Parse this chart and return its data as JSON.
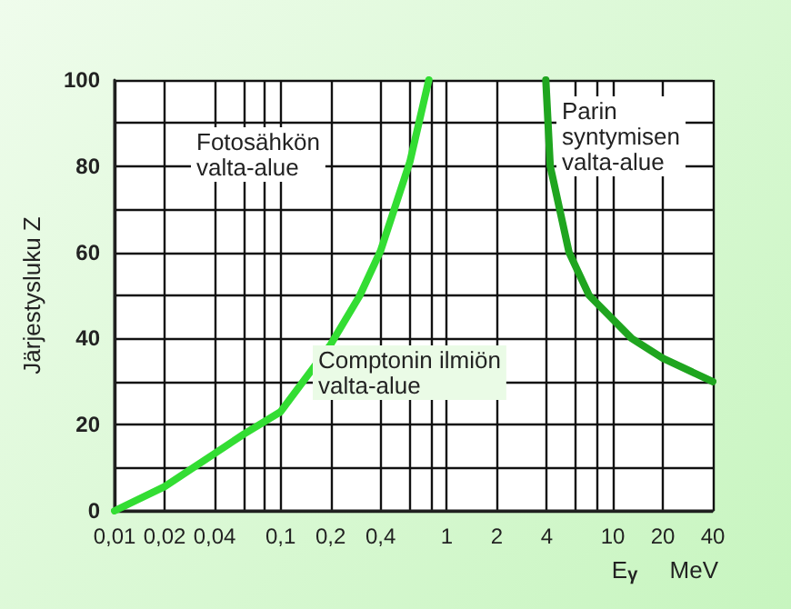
{
  "chart_data": {
    "type": "line",
    "ylabel": "Järjestysluku Z",
    "xlabel": "E$_{γ}$ MeV",
    "annotations": [
      "Fotosähkön\nvalta-alue",
      "Comptonin ilmiön\nvalta-alue",
      "Parin\nsyntymisen\nvalta-alue"
    ],
    "log": "x",
    "series": [
      {
        "color": "#33dd33",
        "x": [
          0.01,
          0.02,
          0.04,
          0.06,
          0.1,
          0.2,
          0.3,
          0.4,
          0.6,
          0.78
        ],
        "values": [
          0,
          5.6,
          13.3,
          17.8,
          23,
          38.6,
          50,
          60.4,
          81,
          100
        ]
      },
      {
        "color": "#1fa51f",
        "x": [
          3.95,
          4.2,
          5.45,
          7.2,
          13,
          20,
          40
        ],
        "values": [
          100,
          80,
          60,
          50,
          40,
          35.4,
          30
        ]
      }
    ],
    "xlim": [
      0.01,
      40
    ],
    "ylim": [
      0,
      100
    ],
    "xticks": [
      {
        "value": 0.01,
        "label": "0,01"
      },
      {
        "value": 0.02,
        "label": "0,02"
      },
      {
        "value": 0.04,
        "label": "0,04"
      },
      {
        "value": 0.06,
        "label": null
      },
      {
        "value": 0.08,
        "label": null
      },
      {
        "value": 0.1,
        "label": "0,1"
      },
      {
        "value": 0.2,
        "label": "0,2"
      },
      {
        "value": 0.4,
        "label": "0,4"
      },
      {
        "value": 0.6,
        "label": null
      },
      {
        "value": 0.8,
        "label": null
      },
      1,
      2,
      4,
      {
        "value": 6,
        "label": null
      },
      {
        "value": 8,
        "label": null
      },
      10,
      20,
      40
    ],
    "yticks": [
      0,
      {
        "value": 10,
        "label": null
      },
      20,
      {
        "value": 30,
        "label": null
      },
      40,
      {
        "value": 50,
        "label": null
      },
      60,
      {
        "value": 70,
        "label": null
      },
      80,
      {
        "value": 90,
        "label": null
      },
      100
    ],
    "grid": true,
    "marker": "none",
    "line_style": "solid"
  }
}
